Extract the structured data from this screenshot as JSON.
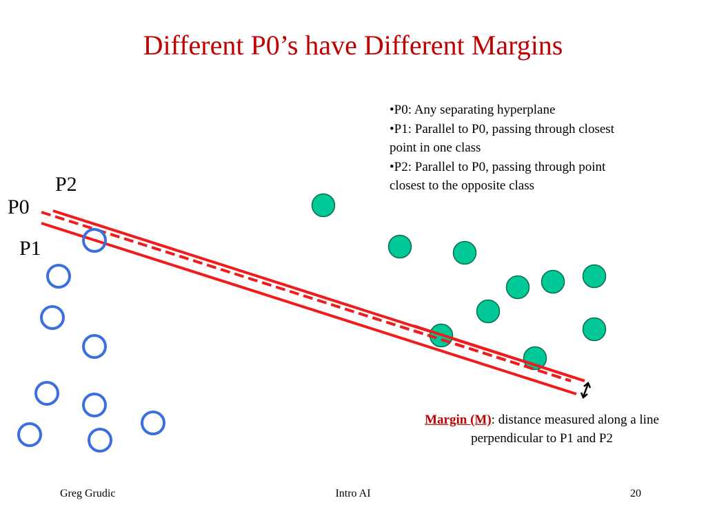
{
  "title": "Different P0’s have Different Margins",
  "bullets": [
    "•P0:  Any separating hyperplane",
    "•P1:  Parallel to P0, passing through closest point in one class",
    "•P2:  Parallel to P0, passing through point closest to the opposite class"
  ],
  "labels": {
    "p0": "P0",
    "p1": "P1",
    "p2": "P2"
  },
  "margin_note": {
    "term": "Margin (M)",
    "text": ": distance measured along a line perpendicular to P1 and P2"
  },
  "footer": {
    "author": "Greg Grudic",
    "course": "Intro AI",
    "page": "20"
  },
  "colors": {
    "title": "#c00000",
    "line": "#ee1c1c",
    "class_a_stroke": "#3b6fe0",
    "class_b_fill": "#00c896",
    "class_b_stroke": "#0a6a50",
    "arrow": "#000000"
  },
  "icons": {
    "margin_arrow": "double-arrow-icon"
  }
}
